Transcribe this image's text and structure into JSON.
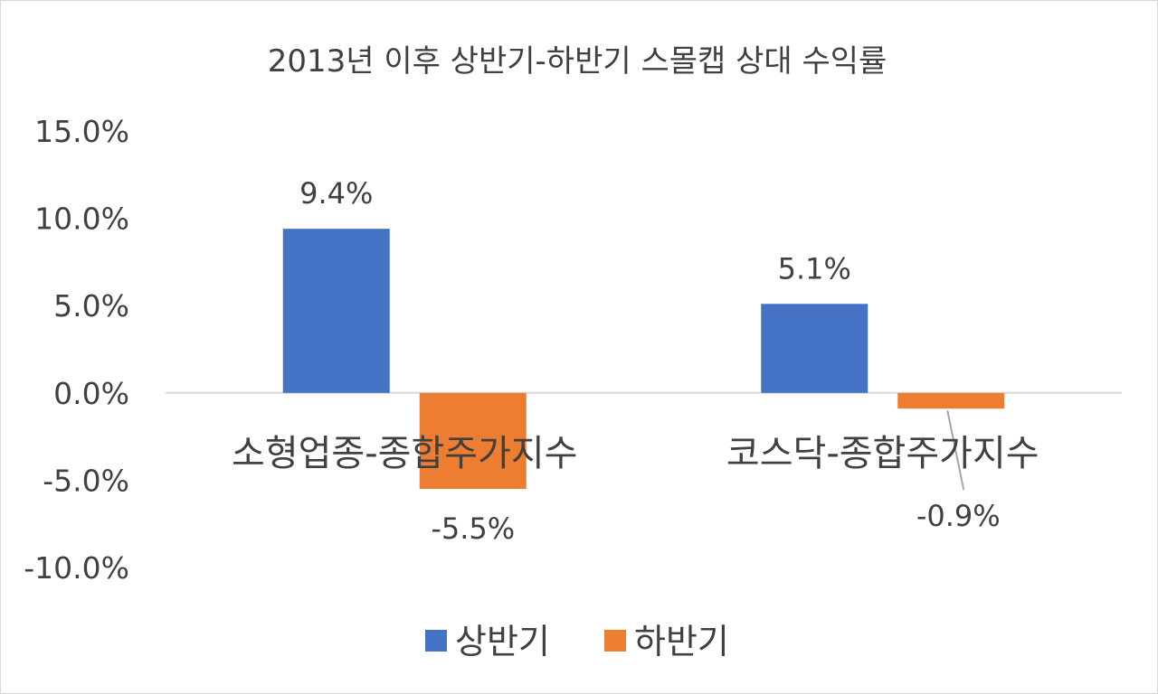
{
  "chart_data": {
    "type": "bar",
    "title": "2013년 이후 상반기-하반기 스몰캡 상대 수익률",
    "categories": [
      "소형업종-종합주가지수",
      "코스닥-종합주가지수"
    ],
    "series": [
      {
        "name": "상반기",
        "values": [
          9.4,
          5.1
        ],
        "labels": [
          "9.4%",
          "5.1%"
        ],
        "color": "#4472c4"
      },
      {
        "name": "하반기",
        "values": [
          -5.5,
          -0.9
        ],
        "labels": [
          "-5.5%",
          "-0.9%"
        ],
        "color": "#ed7d31"
      }
    ],
    "y_ticks": [
      {
        "value": 15,
        "label": "15.0%"
      },
      {
        "value": 10,
        "label": "10.0%"
      },
      {
        "value": 5,
        "label": "5.0%"
      },
      {
        "value": 0,
        "label": "0.0%"
      },
      {
        "value": -5,
        "label": "-5.0%"
      },
      {
        "value": -10,
        "label": "-10.0%"
      }
    ],
    "ylim": [
      -10,
      15
    ],
    "grid": false,
    "legend_position": "bottom",
    "axis_color": "#d9d9d9",
    "leader_line_color": "#a6a6a6"
  }
}
